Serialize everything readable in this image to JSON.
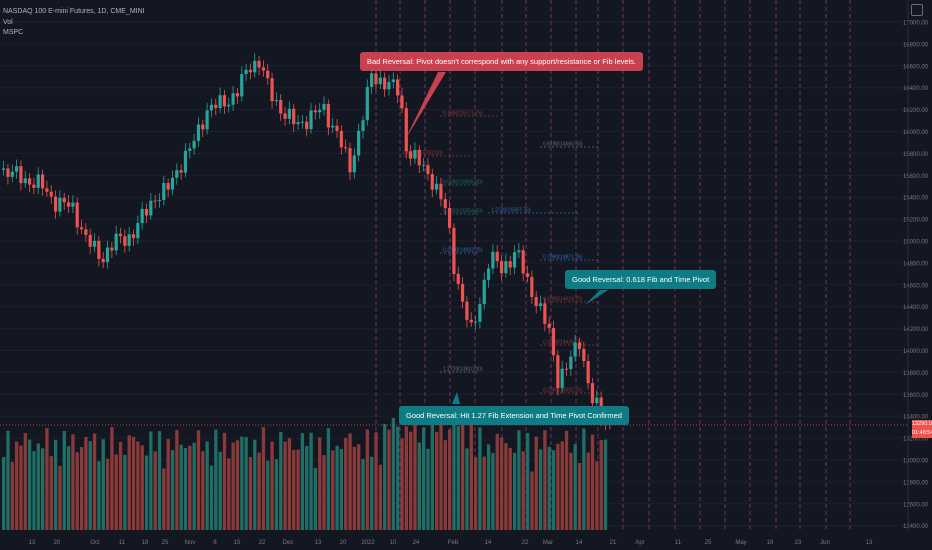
{
  "header": {
    "symbol": "NASDAQ 100 E-mini Futures, 1D, CME_MINI",
    "line2": "Vol",
    "line3": "MSPC"
  },
  "colors": {
    "up": "#26a69a",
    "down": "#ef5350",
    "vol_up": "#1f6f66",
    "vol_down": "#8b3a3a",
    "vline": "#9c3d86",
    "bad": "#c9404f",
    "good": "#0e7c84",
    "fib": "#6a6d78"
  },
  "annotations": {
    "bad": "Bad Reversal: Pivot doesn't correspond with any support/resistance or Fib levels.",
    "good1": "Good Reversal: 0.618 Fib and Time Pivot",
    "good2": "Good Reversal: Hit 1.27 Fib Extension and Time Pivot Confirmed"
  },
  "last_price": {
    "value": "13290.00",
    "countdown": "01:48:54"
  },
  "chart_data": {
    "type": "candlestick",
    "y_axis_ticks": [
      "17000.00",
      "16800.00",
      "16600.00",
      "16400.00",
      "16200.00",
      "16000.00",
      "15800.00",
      "15600.00",
      "15400.00",
      "15200.00",
      "15000.00",
      "14800.00",
      "14600.00",
      "14400.00",
      "14200.00",
      "14000.00",
      "13800.00",
      "13600.00",
      "13400.00",
      "13200.00",
      "13000.00",
      "12800.00",
      "12600.00",
      "12400.00"
    ],
    "x_axis_ticks": [
      "13",
      "20",
      "Oct",
      "11",
      "18",
      "25",
      "Nov",
      "8",
      "15",
      "22",
      "Dec",
      "13",
      "20",
      "2022",
      "10",
      "24",
      "Feb",
      "14",
      "22",
      "Mar",
      "14",
      "21",
      "Apr",
      "11",
      "25",
      "May",
      "16",
      "23",
      "Jun",
      "13"
    ],
    "fib_labels": [
      "1.0000(16630.75)",
      "0.7860(16171.75)",
      "0.6180(15782.00)",
      "0.5000(15505.00)",
      "1.2720(15007.75)",
      "0.3820(15254.50)",
      "0.2360(14932.25)",
      "0.7860(14871.25)",
      "0.5000(14618.75)",
      "0.6180(14680.50)",
      "0.3820(14436.75)",
      "1.2720(13810.00)",
      "0.2360(14092.25)"
    ]
  }
}
